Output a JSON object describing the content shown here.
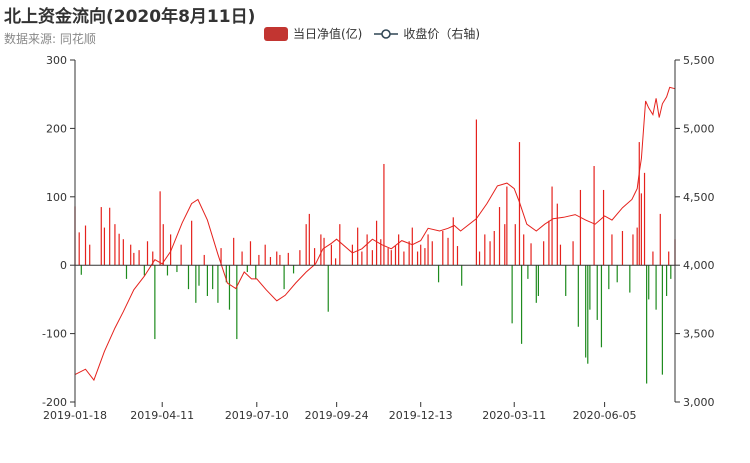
{
  "page": {
    "title": "北上资金流向(2020年8月11日)",
    "subtitle": "数据来源: 同花顺"
  },
  "legend": [
    {
      "name": "当日净值(亿)",
      "type": "bar",
      "color": "#c23531"
    },
    {
      "name": "收盘价（右轴)",
      "type": "line",
      "color": "#2f4554"
    }
  ],
  "colors": {
    "positive": "#e5221d",
    "negative": "#1e8b1e",
    "line": "#e5221d",
    "axis": "#333333"
  },
  "chart_data": {
    "type": "bar",
    "title": "北上资金流向(2020年8月11日)",
    "x_ticks": [
      "2019-01-18",
      "2019-04-11",
      "2019-07-10",
      "2019-09-24",
      "2019-12-13",
      "2020-03-11",
      "2020-06-05"
    ],
    "y_left": {
      "min": -200,
      "max": 300,
      "ticks": [
        "-200",
        "-100",
        "0",
        "100",
        "200",
        "300"
      ]
    },
    "y_right": {
      "min": 3000,
      "max": 5500,
      "ticks": [
        "3,000",
        "3,500",
        "4,000",
        "4,500",
        "5,000",
        "5,500"
      ]
    },
    "x_range": {
      "start": "2019-01-18",
      "end": "2020-08-11"
    },
    "series": [
      {
        "name": "当日净值(亿)",
        "type": "bar",
        "axis": "left",
        "points": [
          [
            "2019-01-18",
            86
          ],
          [
            "2019-01-22",
            48
          ],
          [
            "2019-01-24",
            -14
          ],
          [
            "2019-01-28",
            58
          ],
          [
            "2019-02-01",
            30
          ],
          [
            "2019-02-12",
            85
          ],
          [
            "2019-02-15",
            55
          ],
          [
            "2019-02-20",
            84
          ],
          [
            "2019-02-25",
            60
          ],
          [
            "2019-03-01",
            46
          ],
          [
            "2019-03-05",
            38
          ],
          [
            "2019-03-08",
            -20
          ],
          [
            "2019-03-12",
            30
          ],
          [
            "2019-03-15",
            18
          ],
          [
            "2019-03-20",
            22
          ],
          [
            "2019-03-25",
            -15
          ],
          [
            "2019-03-28",
            35
          ],
          [
            "2019-04-02",
            20
          ],
          [
            "2019-04-04",
            -108
          ],
          [
            "2019-04-09",
            108
          ],
          [
            "2019-04-12",
            60
          ],
          [
            "2019-04-16",
            -15
          ],
          [
            "2019-04-19",
            45
          ],
          [
            "2019-04-25",
            -10
          ],
          [
            "2019-04-29",
            30
          ],
          [
            "2019-05-06",
            -35
          ],
          [
            "2019-05-09",
            65
          ],
          [
            "2019-05-13",
            -55
          ],
          [
            "2019-05-16",
            -30
          ],
          [
            "2019-05-21",
            15
          ],
          [
            "2019-05-24",
            -45
          ],
          [
            "2019-05-29",
            -35
          ],
          [
            "2019-06-03",
            -55
          ],
          [
            "2019-06-06",
            25
          ],
          [
            "2019-06-11",
            -25
          ],
          [
            "2019-06-14",
            -65
          ],
          [
            "2019-06-18",
            40
          ],
          [
            "2019-06-21",
            -108
          ],
          [
            "2019-06-26",
            20
          ],
          [
            "2019-07-01",
            -10
          ],
          [
            "2019-07-04",
            35
          ],
          [
            "2019-07-09",
            -20
          ],
          [
            "2019-07-12",
            15
          ],
          [
            "2019-07-18",
            30
          ],
          [
            "2019-07-23",
            12
          ],
          [
            "2019-07-29",
            20
          ],
          [
            "2019-08-01",
            15
          ],
          [
            "2019-08-05",
            -35
          ],
          [
            "2019-08-09",
            18
          ],
          [
            "2019-08-14",
            -12
          ],
          [
            "2019-08-20",
            22
          ],
          [
            "2019-08-26",
            60
          ],
          [
            "2019-08-29",
            75
          ],
          [
            "2019-09-03",
            25
          ],
          [
            "2019-09-09",
            45
          ],
          [
            "2019-09-12",
            40
          ],
          [
            "2019-09-16",
            -68
          ],
          [
            "2019-09-19",
            30
          ],
          [
            "2019-09-23",
            10
          ],
          [
            "2019-09-27",
            60
          ],
          [
            "2019-10-09",
            30
          ],
          [
            "2019-10-14",
            55
          ],
          [
            "2019-10-18",
            20
          ],
          [
            "2019-10-23",
            45
          ],
          [
            "2019-10-28",
            22
          ],
          [
            "2019-11-01",
            65
          ],
          [
            "2019-11-05",
            38
          ],
          [
            "2019-11-08",
            148
          ],
          [
            "2019-11-12",
            25
          ],
          [
            "2019-11-15",
            22
          ],
          [
            "2019-11-19",
            28
          ],
          [
            "2019-11-22",
            45
          ],
          [
            "2019-11-27",
            20
          ],
          [
            "2019-12-02",
            35
          ],
          [
            "2019-12-05",
            55
          ],
          [
            "2019-12-10",
            20
          ],
          [
            "2019-12-13",
            30
          ],
          [
            "2019-12-17",
            25
          ],
          [
            "2019-12-20",
            45
          ],
          [
            "2019-12-24",
            35
          ],
          [
            "2019-12-30",
            -25
          ],
          [
            "2020-01-03",
            50
          ],
          [
            "2020-01-08",
            40
          ],
          [
            "2020-01-13",
            70
          ],
          [
            "2020-01-17",
            28
          ],
          [
            "2020-01-21",
            -30
          ],
          [
            "2020-02-04",
            213
          ],
          [
            "2020-02-07",
            20
          ],
          [
            "2020-02-12",
            45
          ],
          [
            "2020-02-17",
            35
          ],
          [
            "2020-02-21",
            50
          ],
          [
            "2020-02-26",
            85
          ],
          [
            "2020-03-02",
            60
          ],
          [
            "2020-03-04",
            115
          ],
          [
            "2020-03-09",
            -85
          ],
          [
            "2020-03-12",
            60
          ],
          [
            "2020-03-16",
            180
          ],
          [
            "2020-03-18",
            -115
          ],
          [
            "2020-03-20",
            45
          ],
          [
            "2020-03-24",
            -20
          ],
          [
            "2020-03-27",
            32
          ],
          [
            "2020-04-01",
            -55
          ],
          [
            "2020-04-03",
            -45
          ],
          [
            "2020-04-08",
            35
          ],
          [
            "2020-04-13",
            65
          ],
          [
            "2020-04-16",
            115
          ],
          [
            "2020-04-21",
            90
          ],
          [
            "2020-04-24",
            30
          ],
          [
            "2020-04-29",
            -45
          ],
          [
            "2020-05-06",
            35
          ],
          [
            "2020-05-11",
            -90
          ],
          [
            "2020-05-13",
            110
          ],
          [
            "2020-05-18",
            -135
          ],
          [
            "2020-05-20",
            -144
          ],
          [
            "2020-05-22",
            -65
          ],
          [
            "2020-05-26",
            145
          ],
          [
            "2020-05-29",
            -80
          ],
          [
            "2020-06-02",
            -120
          ],
          [
            "2020-06-04",
            110
          ],
          [
            "2020-06-09",
            -35
          ],
          [
            "2020-06-12",
            45
          ],
          [
            "2020-06-17",
            -25
          ],
          [
            "2020-06-22",
            50
          ],
          [
            "2020-06-29",
            -40
          ],
          [
            "2020-07-02",
            45
          ],
          [
            "2020-07-06",
            55
          ],
          [
            "2020-07-08",
            180
          ],
          [
            "2020-07-10",
            105
          ],
          [
            "2020-07-13",
            135
          ],
          [
            "2020-07-15",
            -173
          ],
          [
            "2020-07-17",
            -50
          ],
          [
            "2020-07-21",
            20
          ],
          [
            "2020-07-24",
            -65
          ],
          [
            "2020-07-28",
            75
          ],
          [
            "2020-07-30",
            -160
          ],
          [
            "2020-08-03",
            -45
          ],
          [
            "2020-08-05",
            20
          ],
          [
            "2020-08-07",
            -20
          ],
          [
            "2020-08-11",
            38
          ]
        ]
      },
      {
        "name": "收盘价（右轴)",
        "type": "line",
        "axis": "right",
        "points": [
          [
            "2019-01-18",
            3200
          ],
          [
            "2019-01-28",
            3240
          ],
          [
            "2019-02-05",
            3160
          ],
          [
            "2019-02-15",
            3370
          ],
          [
            "2019-02-25",
            3540
          ],
          [
            "2019-03-05",
            3660
          ],
          [
            "2019-03-15",
            3820
          ],
          [
            "2019-03-25",
            3920
          ],
          [
            "2019-04-04",
            4040
          ],
          [
            "2019-04-11",
            4010
          ],
          [
            "2019-04-19",
            4100
          ],
          [
            "2019-04-30",
            4310
          ],
          [
            "2019-05-09",
            4450
          ],
          [
            "2019-05-15",
            4480
          ],
          [
            "2019-05-24",
            4330
          ],
          [
            "2019-06-03",
            4080
          ],
          [
            "2019-06-12",
            3870
          ],
          [
            "2019-06-20",
            3830
          ],
          [
            "2019-06-28",
            3950
          ],
          [
            "2019-07-05",
            3900
          ],
          [
            "2019-07-10",
            3900
          ],
          [
            "2019-07-19",
            3820
          ],
          [
            "2019-07-29",
            3740
          ],
          [
            "2019-08-06",
            3780
          ],
          [
            "2019-08-16",
            3870
          ],
          [
            "2019-08-26",
            3950
          ],
          [
            "2019-09-04",
            4010
          ],
          [
            "2019-09-11",
            4120
          ],
          [
            "2019-09-19",
            4160
          ],
          [
            "2019-09-24",
            4190
          ],
          [
            "2019-10-09",
            4090
          ],
          [
            "2019-10-18",
            4120
          ],
          [
            "2019-10-28",
            4190
          ],
          [
            "2019-11-06",
            4150
          ],
          [
            "2019-11-15",
            4120
          ],
          [
            "2019-11-25",
            4180
          ],
          [
            "2019-12-05",
            4150
          ],
          [
            "2019-12-13",
            4180
          ],
          [
            "2019-12-20",
            4270
          ],
          [
            "2019-12-31",
            4250
          ],
          [
            "2020-01-08",
            4270
          ],
          [
            "2020-01-14",
            4290
          ],
          [
            "2020-01-20",
            4250
          ],
          [
            "2020-02-04",
            4340
          ],
          [
            "2020-02-14",
            4450
          ],
          [
            "2020-02-24",
            4580
          ],
          [
            "2020-03-04",
            4600
          ],
          [
            "2020-03-11",
            4560
          ],
          [
            "2020-03-16",
            4460
          ],
          [
            "2020-03-23",
            4300
          ],
          [
            "2020-04-01",
            4250
          ],
          [
            "2020-04-09",
            4300
          ],
          [
            "2020-04-17",
            4340
          ],
          [
            "2020-04-27",
            4350
          ],
          [
            "2020-05-08",
            4370
          ],
          [
            "2020-05-18",
            4330
          ],
          [
            "2020-05-27",
            4300
          ],
          [
            "2020-06-05",
            4360
          ],
          [
            "2020-06-12",
            4330
          ],
          [
            "2020-06-22",
            4420
          ],
          [
            "2020-07-01",
            4480
          ],
          [
            "2020-07-06",
            4560
          ],
          [
            "2020-07-08",
            4680
          ],
          [
            "2020-07-10",
            4780
          ],
          [
            "2020-07-14",
            5200
          ],
          [
            "2020-07-17",
            5150
          ],
          [
            "2020-07-21",
            5100
          ],
          [
            "2020-07-24",
            5220
          ],
          [
            "2020-07-27",
            5080
          ],
          [
            "2020-07-30",
            5180
          ],
          [
            "2020-08-03",
            5230
          ],
          [
            "2020-08-06",
            5300
          ],
          [
            "2020-08-11",
            5290
          ]
        ]
      }
    ]
  }
}
